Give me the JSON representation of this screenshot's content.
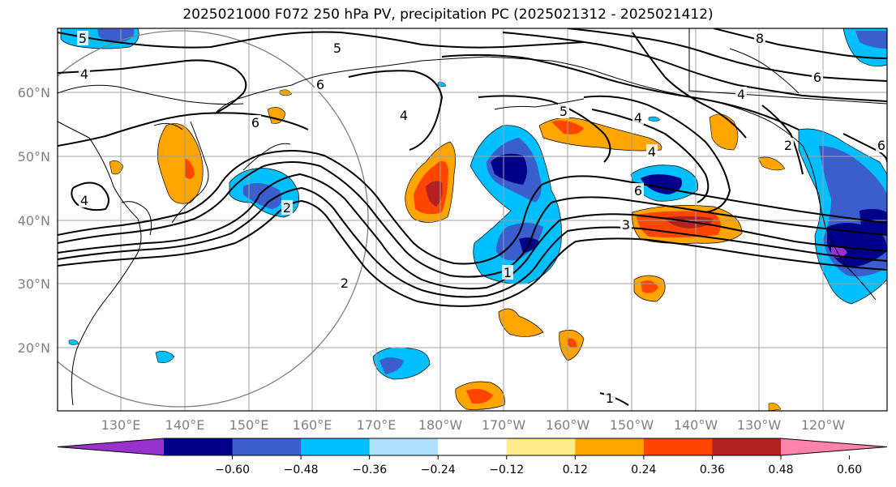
{
  "title": "2025021000 F072 250 hPa PV, precipitation PC (2025021312 - 2025021412)",
  "lat_labels": [
    "60°N",
    "50°N",
    "40°N",
    "30°N",
    "20°N"
  ],
  "lon_labels": [
    "130°E",
    "140°E",
    "150°E",
    "160°E",
    "170°E",
    "180°W",
    "170°W",
    "160°W",
    "150°W",
    "140°W",
    "130°W",
    "120°W"
  ],
  "colorbar": {
    "ticks": [
      "−0.60",
      "−0.48",
      "−0.36",
      "−0.24",
      "−0.12",
      "0.12",
      "0.24",
      "0.36",
      "0.48",
      "0.60"
    ],
    "colors": [
      "#9932CC",
      "#00008B",
      "#3A5FCD",
      "#00BFFF",
      "#B0E2FF",
      "#FFFFFF",
      "#FFEC8B",
      "#FFA500",
      "#FF4500",
      "#B22222",
      "#FF82AB"
    ]
  },
  "contour_labels": [
    "5",
    "5",
    "4",
    "6",
    "6",
    "6",
    "4",
    "5",
    "4",
    "4",
    "6",
    "8",
    "4",
    "4",
    "2",
    "3",
    "1",
    "2",
    "2",
    "6",
    "1"
  ]
}
